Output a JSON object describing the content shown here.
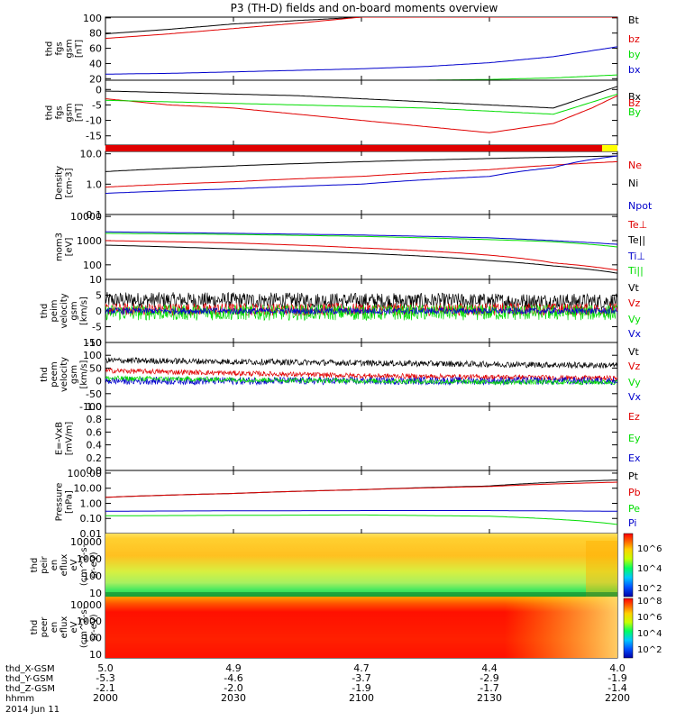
{
  "title": "P3 (TH-D) fields and on-board moments overview",
  "colors": {
    "black": "#000000",
    "red": "#e00000",
    "green": "#00dd00",
    "blue": "#0000cc",
    "yellow": "#ffff00"
  },
  "colorbar_labels": {
    "eflux_i": [
      "10^6",
      "10^4",
      "10^2"
    ],
    "eflux_e": [
      "10^8",
      "10^6",
      "10^4",
      "10^2"
    ]
  },
  "chart_data": [
    {
      "id": "fgs_mag",
      "type": "line",
      "ylabel_lines": [
        "thd",
        "fgs",
        "gsm",
        "[nT]"
      ],
      "ylim": [
        18,
        101
      ],
      "yticks": [
        20,
        40,
        60,
        80,
        100
      ],
      "ytick_labels": [
        "20",
        "40",
        "60",
        "80",
        "100"
      ],
      "legend": [
        {
          "name": "Bt",
          "color": "black"
        },
        {
          "name": "bz",
          "color": "red"
        },
        {
          "name": "by",
          "color": "green"
        },
        {
          "name": "bx",
          "color": "blue"
        }
      ],
      "series": [
        {
          "name": "Bt",
          "color": "black",
          "x": [
            0,
            0.5,
            1,
            2,
            3,
            4
          ],
          "y": [
            79,
            85,
            92,
            101,
            101,
            101
          ]
        },
        {
          "name": "bz",
          "color": "red",
          "x": [
            0,
            0.5,
            1,
            1.5,
            2,
            3,
            4
          ],
          "y": [
            73,
            79,
            86,
            93,
            101,
            101,
            101
          ]
        },
        {
          "name": "bx",
          "color": "blue",
          "x": [
            0,
            0.5,
            1,
            1.5,
            2,
            2.5,
            3,
            3.5,
            4
          ],
          "y": [
            26,
            27,
            29,
            31,
            33,
            36,
            41,
            49,
            62
          ]
        },
        {
          "name": "by",
          "color": "green",
          "x": [
            0,
            1,
            2,
            2.5,
            3,
            3.5,
            4
          ],
          "y": [
            16,
            17,
            17,
            18,
            19,
            21,
            25
          ]
        }
      ]
    },
    {
      "id": "fgs_comp",
      "type": "line",
      "ylabel_lines": [
        "thd",
        "fgs",
        "gsm",
        "[nT]"
      ],
      "ylim": [
        -18,
        3
      ],
      "yticks": [
        -15,
        -10,
        -5,
        0
      ],
      "ytick_labels": [
        "-15",
        "-10",
        "-5",
        "0"
      ],
      "legend": [
        {
          "name": "Bx",
          "color": "black"
        },
        {
          "name": "Bz",
          "color": "red"
        },
        {
          "name": "By",
          "color": "green"
        }
      ],
      "series": [
        {
          "name": "Bx",
          "color": "black",
          "x": [
            0,
            0.5,
            1,
            1.5,
            2,
            2.5,
            3,
            3.5,
            4
          ],
          "y": [
            -0.5,
            -1,
            -1.5,
            -2,
            -3,
            -4,
            -5,
            -6,
            1
          ]
        },
        {
          "name": "Bz",
          "color": "red",
          "x": [
            0,
            0.5,
            1,
            1.5,
            2,
            2.5,
            3,
            3.5,
            3.8,
            4
          ],
          "y": [
            -3,
            -5,
            -6,
            -8,
            -10,
            -12,
            -14,
            -11,
            -6,
            -2
          ]
        },
        {
          "name": "By",
          "color": "green",
          "x": [
            0,
            0.5,
            1,
            1.5,
            2,
            2.5,
            3,
            3.5,
            4
          ],
          "y": [
            -3.5,
            -4,
            -4.5,
            -5,
            -5.5,
            -6,
            -7,
            -8,
            -1.5
          ]
        }
      ]
    },
    {
      "id": "density",
      "type": "line",
      "scale": "log",
      "ylabel_lines": [
        "Density",
        "[cm-3]"
      ],
      "ylim": [
        0.1,
        12
      ],
      "yticks": [
        0.1,
        1.0,
        10.0
      ],
      "ytick_labels": [
        "0.1",
        "1.0",
        "10.0"
      ],
      "legend": [
        {
          "name": "Ne",
          "color": "red"
        },
        {
          "name": "Ni",
          "color": "black"
        },
        {
          "name": "Npot",
          "color": "blue"
        }
      ],
      "series": [
        {
          "name": "Ni",
          "color": "black",
          "x": [
            0,
            1,
            2,
            3,
            4
          ],
          "y": [
            2.6,
            4.0,
            5.5,
            7.0,
            8.5
          ]
        },
        {
          "name": "Ne",
          "color": "red",
          "x": [
            0,
            1,
            2,
            3,
            4
          ],
          "y": [
            0.8,
            1.2,
            1.8,
            3.0,
            5.5
          ]
        },
        {
          "name": "Npot",
          "color": "blue",
          "x": [
            0,
            1,
            2,
            3,
            3.5,
            4
          ],
          "y": [
            0.5,
            0.7,
            1.0,
            1.8,
            3.5,
            8.5
          ]
        }
      ]
    },
    {
      "id": "temp",
      "type": "line",
      "scale": "log",
      "ylabel_lines": [
        "mom3",
        "[eV]"
      ],
      "ylim": [
        25,
        12000
      ],
      "yticks": [
        100,
        1000,
        10000
      ],
      "ytick_labels": [
        "100",
        "1000",
        "10000"
      ],
      "legend": [
        {
          "name": "Te⊥",
          "color": "red"
        },
        {
          "name": "Te||",
          "color": "black"
        },
        {
          "name": "Ti⊥",
          "color": "blue"
        },
        {
          "name": "Ti||",
          "color": "green"
        }
      ],
      "series": [
        {
          "name": "Ti⊥",
          "color": "blue",
          "x": [
            0,
            1,
            2,
            3,
            3.5,
            4
          ],
          "y": [
            2300,
            2000,
            1700,
            1300,
            1000,
            700
          ]
        },
        {
          "name": "Ti||",
          "color": "green",
          "x": [
            0,
            1,
            2,
            3,
            3.5,
            4
          ],
          "y": [
            2000,
            1800,
            1500,
            1100,
            900,
            550
          ]
        },
        {
          "name": "Te⊥",
          "color": "red",
          "x": [
            0,
            1,
            2,
            3,
            3.5,
            4
          ],
          "y": [
            1000,
            800,
            500,
            250,
            120,
            60
          ]
        },
        {
          "name": "Te||",
          "color": "black",
          "x": [
            0,
            1,
            2,
            3,
            3.5,
            4
          ],
          "y": [
            650,
            450,
            300,
            150,
            90,
            45
          ]
        }
      ]
    },
    {
      "id": "eint_vel",
      "type": "line",
      "ylabel_lines": [
        "thd",
        "peim",
        "velocity",
        "gsm",
        "[km/s]"
      ],
      "ylim": [
        -10,
        10
      ],
      "yticks": [
        -10,
        -5,
        0,
        5,
        10
      ],
      "ytick_labels": [
        "-10",
        "-5",
        "0",
        "5",
        "10"
      ],
      "legend": [
        {
          "name": "Vt",
          "color": "black"
        },
        {
          "name": "Vz",
          "color": "red"
        },
        {
          "name": "Vy",
          "color": "green"
        },
        {
          "name": "Vx",
          "color": "blue"
        }
      ],
      "series": [
        {
          "name": "Vt",
          "color": "black",
          "x": [
            0,
            4
          ],
          "y": [
            3.5,
            3.0
          ],
          "noise": 2.5
        },
        {
          "name": "Vz",
          "color": "red",
          "x": [
            0,
            4
          ],
          "y": [
            0.5,
            0.5
          ],
          "noise": 2.0
        },
        {
          "name": "Vy",
          "color": "green",
          "x": [
            0,
            4
          ],
          "y": [
            -0.5,
            -0.5
          ],
          "noise": 2.5
        },
        {
          "name": "Vx",
          "color": "blue",
          "x": [
            0,
            4
          ],
          "y": [
            0,
            0
          ],
          "noise": 1.0
        }
      ]
    },
    {
      "id": "peem_vel",
      "type": "line",
      "ylabel_lines": [
        "thd",
        "peem",
        "velocity",
        "gsm",
        "[km/s]"
      ],
      "ylim": [
        -100,
        150
      ],
      "yticks": [
        -100,
        -50,
        0,
        50,
        100,
        150
      ],
      "ytick_labels": [
        "-100",
        "-50",
        "0",
        "50",
        "100",
        "150"
      ],
      "legend": [
        {
          "name": "Vt",
          "color": "black"
        },
        {
          "name": "Vz",
          "color": "red"
        },
        {
          "name": "Vy",
          "color": "green"
        },
        {
          "name": "Vx",
          "color": "blue"
        }
      ],
      "series": [
        {
          "name": "Vt",
          "color": "black",
          "x": [
            0,
            1,
            2,
            3,
            4
          ],
          "y": [
            80,
            75,
            70,
            65,
            60
          ],
          "noise": 12
        },
        {
          "name": "Vz",
          "color": "red",
          "x": [
            0,
            1,
            2,
            3,
            4
          ],
          "y": [
            40,
            30,
            20,
            15,
            10
          ],
          "noise": 10
        },
        {
          "name": "Vx",
          "color": "blue",
          "x": [
            0,
            4
          ],
          "y": [
            0,
            0
          ],
          "noise": 15
        },
        {
          "name": "Vy",
          "color": "green",
          "x": [
            0,
            1,
            2,
            3,
            4
          ],
          "y": [
            10,
            5,
            0,
            -5,
            -5
          ],
          "noise": 10
        }
      ]
    },
    {
      "id": "efield",
      "type": "line",
      "ylabel_lines": [
        "E=-VxB",
        "[mV/m]"
      ],
      "ylim": [
        0,
        1.0
      ],
      "yticks": [
        0,
        0.2,
        0.4,
        0.6,
        0.8,
        1.0
      ],
      "ytick_labels": [
        "0.0",
        "0.2",
        "0.4",
        "0.6",
        "0.8",
        "1.0"
      ],
      "legend": [
        {
          "name": "Ez",
          "color": "red"
        },
        {
          "name": "Ey",
          "color": "green"
        },
        {
          "name": "Ex",
          "color": "blue"
        }
      ],
      "series": []
    },
    {
      "id": "pressure",
      "type": "line",
      "scale": "log",
      "ylabel_lines": [
        "Pressure",
        "[nPa]"
      ],
      "ylim": [
        0.01,
        150
      ],
      "yticks": [
        0.01,
        0.1,
        1.0,
        10.0,
        100.0
      ],
      "ytick_labels": [
        "0.01",
        "0.10",
        "1.00",
        "10.00",
        "100.00"
      ],
      "legend": [
        {
          "name": "Pt",
          "color": "black"
        },
        {
          "name": "Pb",
          "color": "red"
        },
        {
          "name": "Pe",
          "color": "green"
        },
        {
          "name": "Pi",
          "color": "blue"
        }
      ],
      "series": [
        {
          "name": "Pt",
          "color": "black",
          "x": [
            0,
            1,
            2,
            3,
            4
          ],
          "y": [
            2.5,
            4.5,
            8,
            14,
            35
          ]
        },
        {
          "name": "Pb",
          "color": "red",
          "x": [
            0,
            1,
            2,
            3,
            4
          ],
          "y": [
            2.5,
            4.5,
            8,
            13,
            25
          ]
        },
        {
          "name": "Pi",
          "color": "blue",
          "x": [
            0,
            1,
            2,
            3,
            4
          ],
          "y": [
            0.3,
            0.32,
            0.33,
            0.33,
            0.3
          ]
        },
        {
          "name": "Pe",
          "color": "green",
          "x": [
            0,
            1,
            2,
            3,
            3.5,
            4
          ],
          "y": [
            0.15,
            0.16,
            0.17,
            0.14,
            0.09,
            0.04
          ]
        }
      ]
    },
    {
      "id": "peir_spec",
      "type": "heatmap",
      "scale": "log",
      "ylabel_lines": [
        "thd",
        "peir",
        "en",
        "eflux",
        "eV",
        "(cm^2-s-",
        "sr-eV)"
      ],
      "ylim": [
        6,
        30000
      ],
      "yticks": [
        10,
        100,
        1000,
        10000
      ],
      "ytick_labels": [
        "10",
        "100",
        "1000",
        "10000"
      ]
    },
    {
      "id": "peer_spec",
      "type": "heatmap",
      "scale": "log",
      "ylabel_lines": [
        "thd",
        "peer",
        "en",
        "eflux",
        "eV",
        "(cm^2-s-",
        "sr-eV)"
      ],
      "ylim": [
        6,
        30000
      ],
      "yticks": [
        10,
        100,
        1000,
        10000
      ],
      "ytick_labels": [
        "10",
        "100",
        "1000",
        "10000"
      ]
    }
  ],
  "x_axis": {
    "row_labels": [
      "thd_X-GSM",
      "thd_Y-GSM",
      "thd_Z-GSM",
      "hhmm",
      "2014 Jun 11"
    ],
    "ticks": [
      {
        "x": 0,
        "values": [
          "5.0",
          "-5.3",
          "-2.1",
          "2000"
        ]
      },
      {
        "x": 1,
        "values": [
          "4.9",
          "-4.6",
          "-2.0",
          "2030"
        ]
      },
      {
        "x": 2,
        "values": [
          "4.7",
          "-3.7",
          "-1.9",
          "2100"
        ]
      },
      {
        "x": 3,
        "values": [
          "4.4",
          "-2.9",
          "-1.7",
          "2130"
        ]
      },
      {
        "x": 4,
        "values": [
          "4.0",
          "-1.9",
          "-1.4",
          "2200"
        ]
      }
    ]
  }
}
